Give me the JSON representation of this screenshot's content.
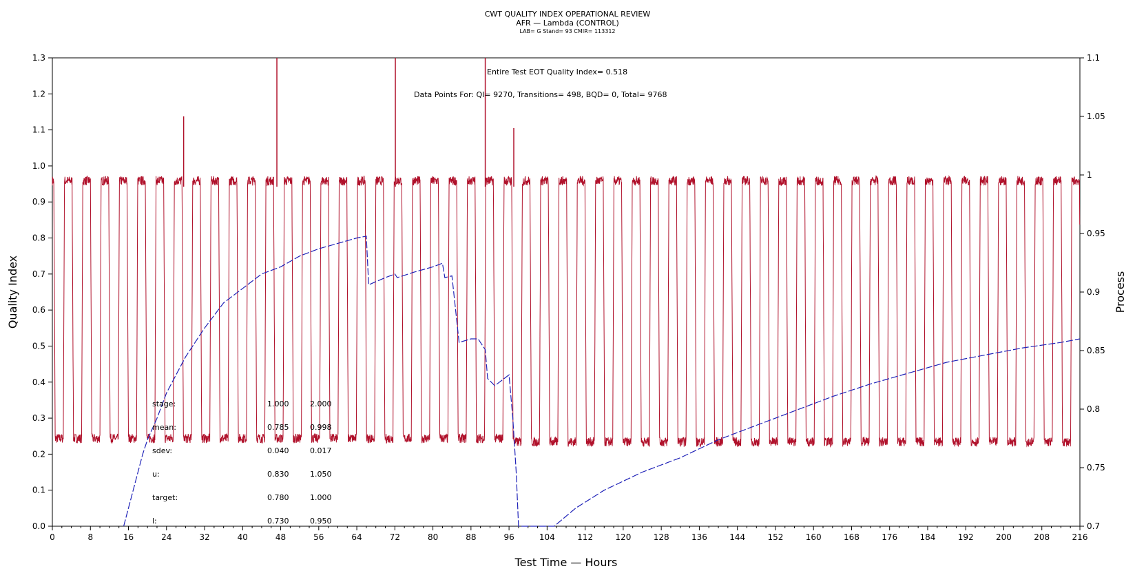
{
  "header": {
    "title": "CWT QUALITY INDEX OPERATIONAL REVIEW",
    "subtitle": "AFR — Lambda (CONTROL)",
    "info": "LAB= G Stand= 93 CMIR= 113312"
  },
  "annotations": {
    "eot_label": "Entire Test EOT Quality Index=",
    "eot_value": "0.518",
    "points_label": "Data Points For:",
    "points_line": "QI= 9270, Transitions= 498, BQD= 0, Total= 9768"
  },
  "stats": {
    "rows": [
      {
        "label": "stage:",
        "v1": "1.000",
        "v2": "2.000"
      },
      {
        "label": "mean:",
        "v1": "0.785",
        "v2": "0.998"
      },
      {
        "label": "sdev:",
        "v1": "0.040",
        "v2": "0.017"
      },
      {
        "label": "u:",
        "v1": "0.830",
        "v2": "1.050"
      },
      {
        "label": "target:",
        "v1": "0.780",
        "v2": "1.000"
      },
      {
        "label": "l:",
        "v1": "0.730",
        "v2": "0.950"
      }
    ]
  },
  "colors": {
    "process": "#b0112b",
    "quality": "#1f22b8",
    "axis": "#000000"
  },
  "chart_data": {
    "type": "line",
    "title": "CWT QUALITY INDEX OPERATIONAL REVIEW",
    "xlabel": "Test Time — Hours",
    "ylabel": "Quality Index",
    "y2label": "Process",
    "xlim": [
      0,
      216
    ],
    "ylim": [
      0,
      1.3
    ],
    "y2lim": [
      0.7,
      1.1
    ],
    "xticks": [
      0,
      8,
      16,
      24,
      32,
      40,
      48,
      56,
      64,
      72,
      80,
      88,
      96,
      104,
      112,
      120,
      128,
      136,
      144,
      152,
      160,
      168,
      176,
      184,
      192,
      200,
      208,
      216
    ],
    "yticks": [
      0.0,
      0.1,
      0.2,
      0.3,
      0.4,
      0.5,
      0.6,
      0.7,
      0.8,
      0.9,
      1.0,
      1.1,
      1.2,
      1.3
    ],
    "y2ticks": [
      0.7,
      0.75,
      0.8,
      0.85,
      0.9,
      0.95,
      1,
      1.05,
      1.1
    ],
    "grid": false,
    "series": [
      {
        "name": "Process",
        "axis": "right",
        "cycle_period_hours": 3.85,
        "low_level": 0.775,
        "high_level": 0.995,
        "low_level_after_hour_97": 0.772,
        "spikes": [
          {
            "x": 27.6,
            "y": 1.05
          },
          {
            "x": 47.2,
            "y": 1.1
          },
          {
            "x": 72.1,
            "y": 1.1
          },
          {
            "x": 91.0,
            "y": 1.1
          },
          {
            "x": 97.0,
            "y": 1.04
          }
        ]
      },
      {
        "name": "Quality Index",
        "axis": "left",
        "points": [
          {
            "x": 15.0,
            "y": 0.0
          },
          {
            "x": 16.0,
            "y": 0.05
          },
          {
            "x": 17.0,
            "y": 0.1
          },
          {
            "x": 18.0,
            "y": 0.15
          },
          {
            "x": 19.0,
            "y": 0.2
          },
          {
            "x": 20.0,
            "y": 0.24
          },
          {
            "x": 22.0,
            "y": 0.3
          },
          {
            "x": 24.0,
            "y": 0.37
          },
          {
            "x": 26.0,
            "y": 0.42
          },
          {
            "x": 28.0,
            "y": 0.47
          },
          {
            "x": 32.0,
            "y": 0.55
          },
          {
            "x": 36.0,
            "y": 0.62
          },
          {
            "x": 40.0,
            "y": 0.66
          },
          {
            "x": 44.0,
            "y": 0.7
          },
          {
            "x": 48.0,
            "y": 0.72
          },
          {
            "x": 52.0,
            "y": 0.75
          },
          {
            "x": 56.0,
            "y": 0.77
          },
          {
            "x": 60.0,
            "y": 0.785
          },
          {
            "x": 64.0,
            "y": 0.8
          },
          {
            "x": 66.0,
            "y": 0.805
          },
          {
            "x": 66.5,
            "y": 0.67
          },
          {
            "x": 70.0,
            "y": 0.69
          },
          {
            "x": 72.0,
            "y": 0.7
          },
          {
            "x": 72.5,
            "y": 0.69
          },
          {
            "x": 76.0,
            "y": 0.705
          },
          {
            "x": 80.0,
            "y": 0.72
          },
          {
            "x": 82.0,
            "y": 0.73
          },
          {
            "x": 82.5,
            "y": 0.69
          },
          {
            "x": 84.0,
            "y": 0.695
          },
          {
            "x": 85.5,
            "y": 0.51
          },
          {
            "x": 88.0,
            "y": 0.52
          },
          {
            "x": 89.5,
            "y": 0.52
          },
          {
            "x": 91.0,
            "y": 0.49
          },
          {
            "x": 91.5,
            "y": 0.41
          },
          {
            "x": 93.0,
            "y": 0.39
          },
          {
            "x": 95.0,
            "y": 0.41
          },
          {
            "x": 96.0,
            "y": 0.42
          },
          {
            "x": 96.8,
            "y": 0.3
          },
          {
            "x": 97.5,
            "y": 0.15
          },
          {
            "x": 98.0,
            "y": 0.0
          },
          {
            "x": 105.5,
            "y": 0.0
          },
          {
            "x": 110.0,
            "y": 0.05
          },
          {
            "x": 116.0,
            "y": 0.1
          },
          {
            "x": 124.0,
            "y": 0.15
          },
          {
            "x": 132.0,
            "y": 0.19
          },
          {
            "x": 140.0,
            "y": 0.24
          },
          {
            "x": 148.0,
            "y": 0.28
          },
          {
            "x": 156.0,
            "y": 0.32
          },
          {
            "x": 164.0,
            "y": 0.36
          },
          {
            "x": 172.0,
            "y": 0.395
          },
          {
            "x": 180.0,
            "y": 0.425
          },
          {
            "x": 188.0,
            "y": 0.455
          },
          {
            "x": 196.0,
            "y": 0.475
          },
          {
            "x": 204.0,
            "y": 0.495
          },
          {
            "x": 212.0,
            "y": 0.51
          },
          {
            "x": 216.0,
            "y": 0.52
          }
        ]
      }
    ]
  }
}
